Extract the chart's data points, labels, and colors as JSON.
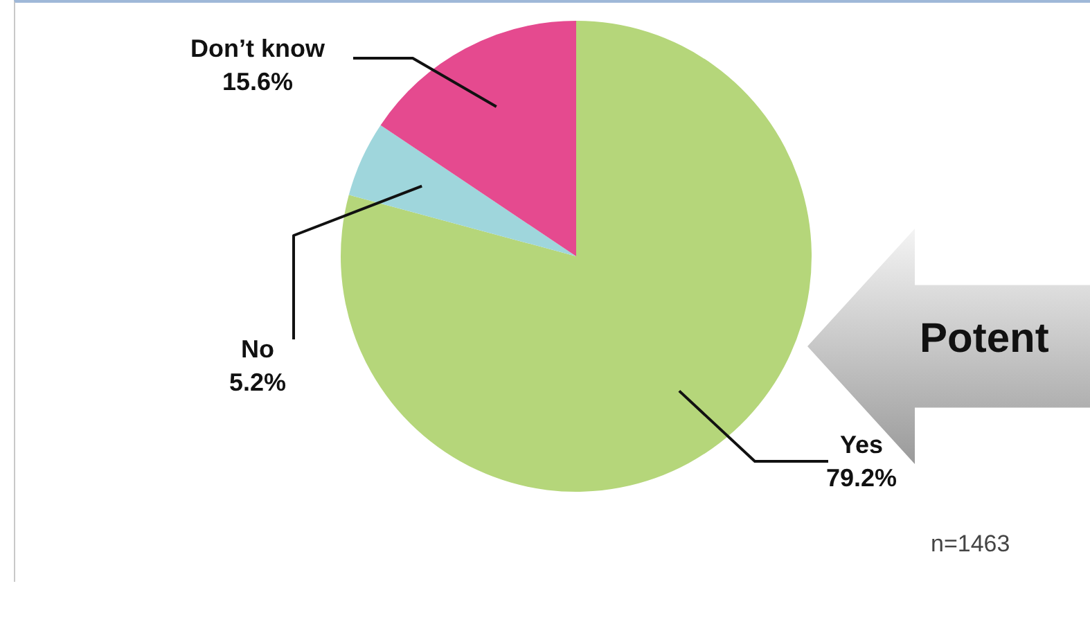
{
  "chart_data": {
    "type": "pie",
    "categories": [
      "Yes",
      "No",
      "Don’t know"
    ],
    "values": [
      79.2,
      5.2,
      15.6
    ],
    "value_labels": [
      "79.2%",
      "5.2%",
      "15.6%"
    ],
    "colors": [
      "#b5d67a",
      "#9fd6dc",
      "#e54a8f"
    ],
    "legend": false,
    "annotations": [
      "n=1463",
      "Potent"
    ]
  }
}
